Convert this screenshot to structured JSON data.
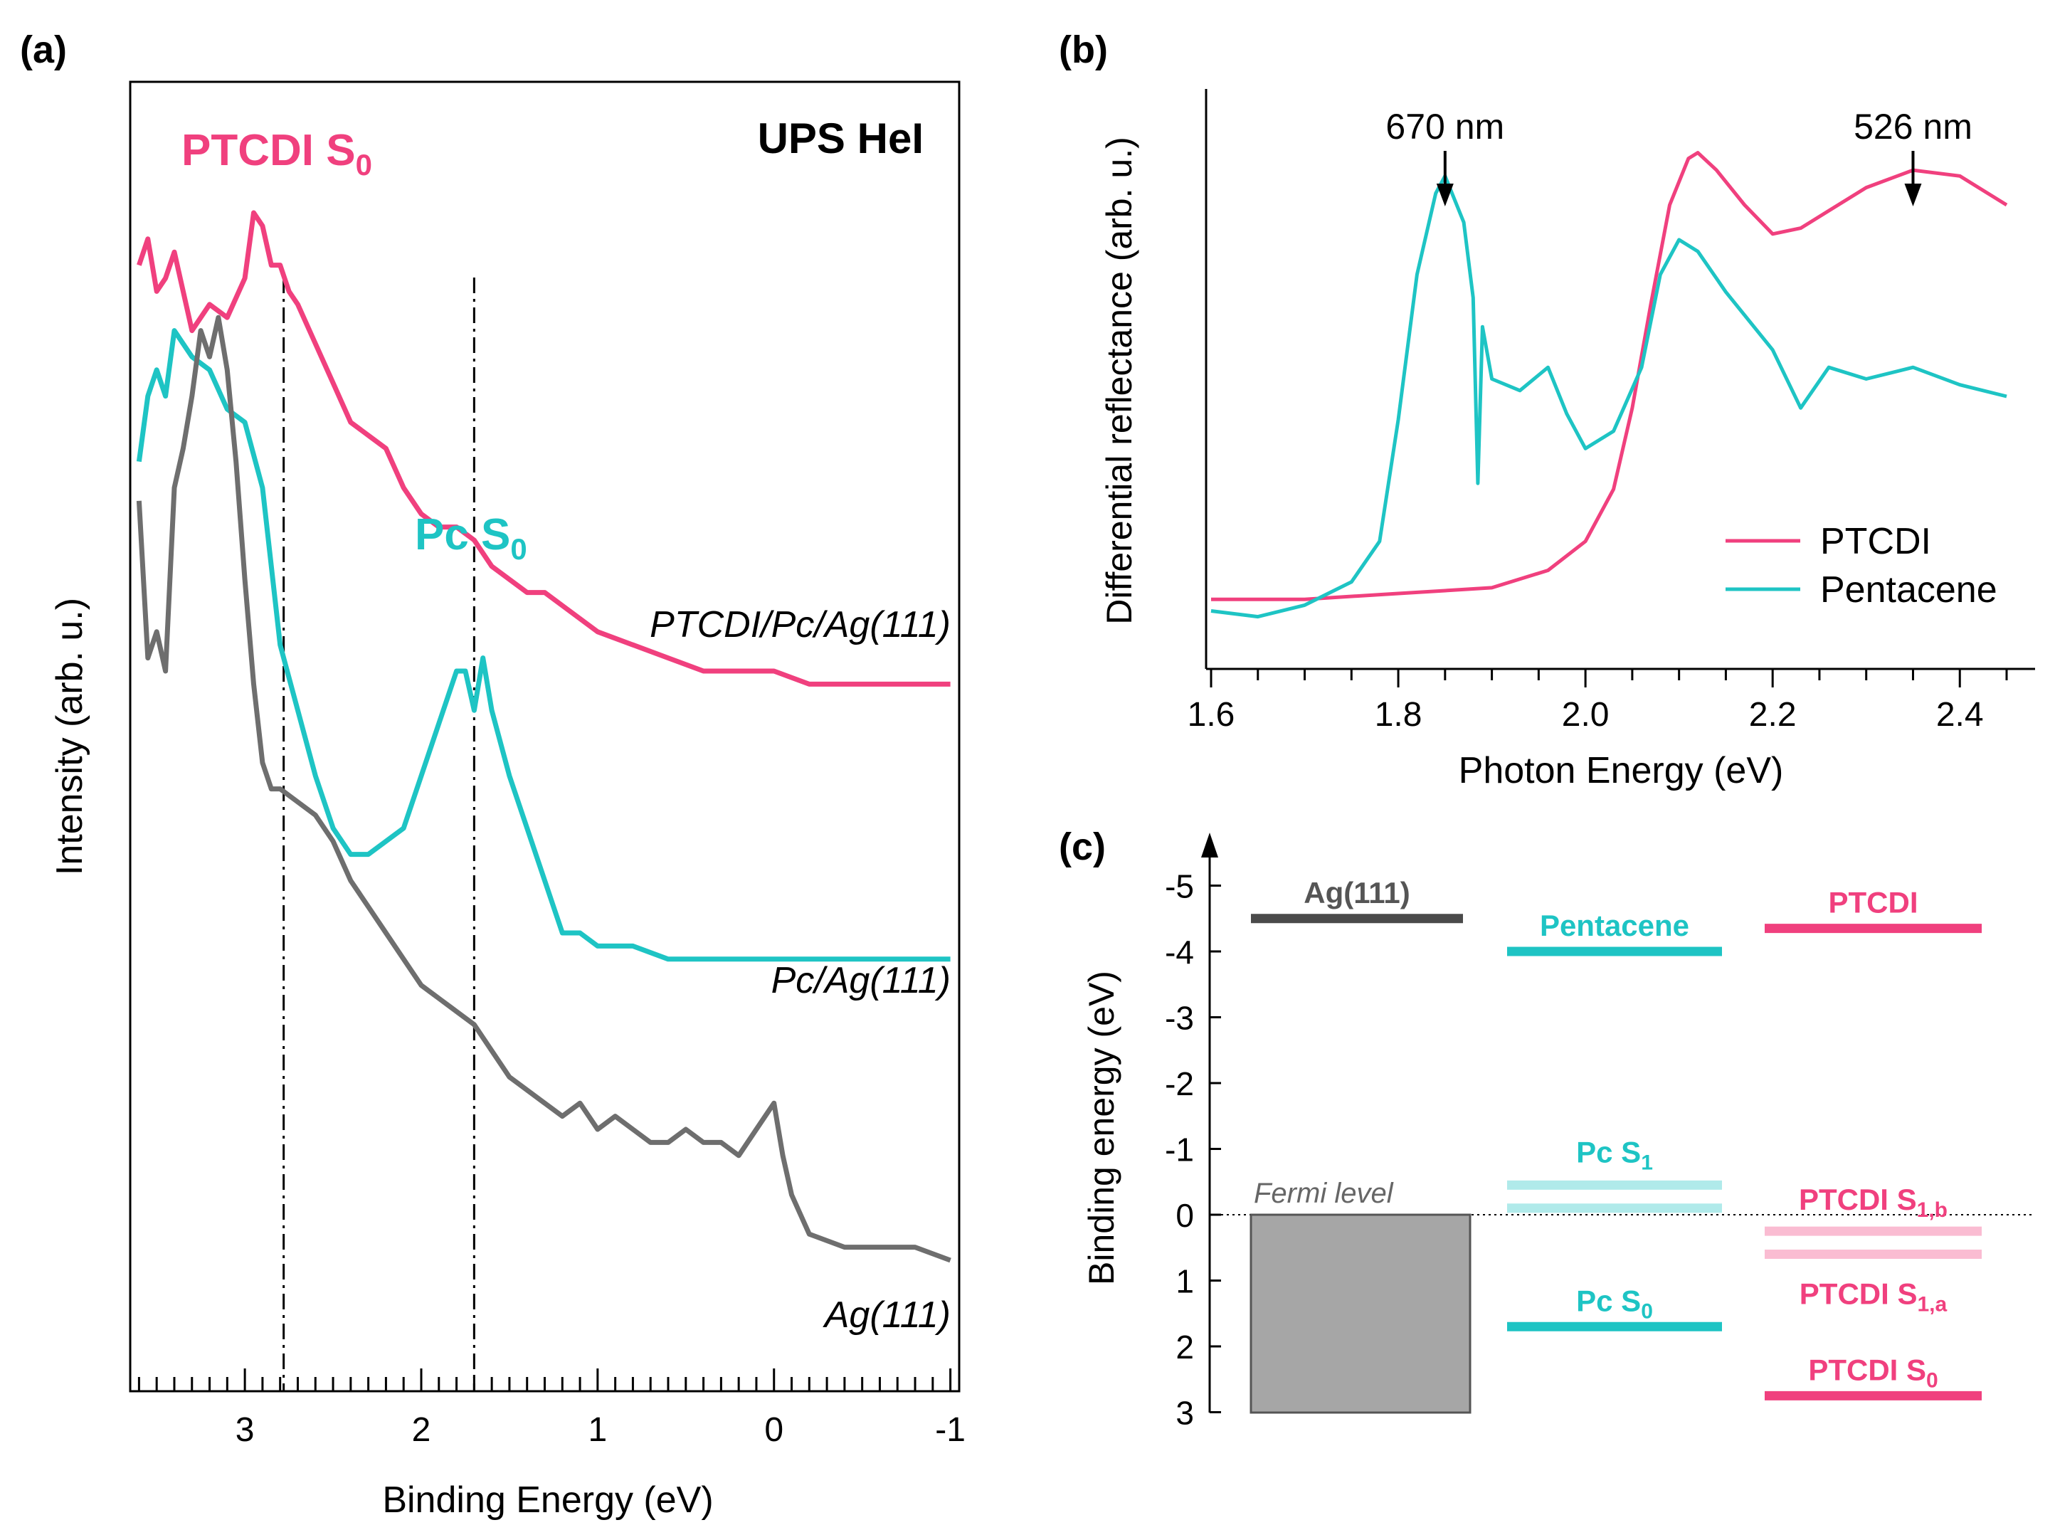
{
  "figure": {
    "colors": {
      "ptcdi": "#f0407e",
      "pentacene": "#1ec4c4",
      "ag": "#6e6e6e",
      "ag_dark": "#4a4a4a",
      "box": "#a6a6a6",
      "black": "#000000"
    }
  },
  "chart_data": [
    {
      "panel": "(a)",
      "type": "line",
      "title": "UPS HeI",
      "xlabel": "Binding Energy (eV)",
      "ylabel": "Intensity (arb. u.)",
      "xlim": [
        3.65,
        -1.05
      ],
      "xticks": [
        3,
        2,
        1,
        0,
        -1
      ],
      "x_inverted": true,
      "annotations": [
        {
          "text": "PTCDI S",
          "sub": "0",
          "color": "ptcdi"
        },
        {
          "text": "Pc S",
          "sub": "0",
          "color": "pentacene"
        }
      ],
      "guides_x": [
        2.78,
        1.7
      ],
      "series": [
        {
          "name": "PTCDI/Pc/Ag(111)",
          "color": "ptcdi",
          "x": [
            3.6,
            3.55,
            3.5,
            3.45,
            3.4,
            3.35,
            3.3,
            3.2,
            3.1,
            3.0,
            2.95,
            2.9,
            2.85,
            2.8,
            2.75,
            2.7,
            2.6,
            2.5,
            2.4,
            2.3,
            2.2,
            2.1,
            2.0,
            1.9,
            1.8,
            1.7,
            1.6,
            1.5,
            1.4,
            1.3,
            1.2,
            1.0,
            0.8,
            0.6,
            0.4,
            0.2,
            0.0,
            -0.2,
            -0.4,
            -0.6,
            -0.8,
            -1.0
          ],
          "y": [
            0.86,
            0.88,
            0.84,
            0.85,
            0.87,
            0.84,
            0.81,
            0.83,
            0.82,
            0.85,
            0.9,
            0.89,
            0.86,
            0.86,
            0.84,
            0.83,
            0.8,
            0.77,
            0.74,
            0.73,
            0.72,
            0.69,
            0.67,
            0.66,
            0.66,
            0.65,
            0.63,
            0.62,
            0.61,
            0.61,
            0.6,
            0.58,
            0.57,
            0.56,
            0.55,
            0.55,
            0.55,
            0.54,
            0.54,
            0.54,
            0.54,
            0.54
          ]
        },
        {
          "name": "Pc/Ag(111)",
          "color": "pentacene",
          "x": [
            3.6,
            3.55,
            3.5,
            3.45,
            3.4,
            3.3,
            3.2,
            3.1,
            3.0,
            2.9,
            2.8,
            2.7,
            2.6,
            2.5,
            2.4,
            2.3,
            2.2,
            2.1,
            2.0,
            1.9,
            1.8,
            1.75,
            1.7,
            1.65,
            1.6,
            1.5,
            1.4,
            1.3,
            1.2,
            1.1,
            1.0,
            0.8,
            0.6,
            0.4,
            0.2,
            0.0,
            -0.2,
            -0.4,
            -0.6,
            -0.8,
            -1.0
          ],
          "y": [
            0.71,
            0.76,
            0.78,
            0.76,
            0.81,
            0.79,
            0.78,
            0.75,
            0.74,
            0.69,
            0.57,
            0.52,
            0.47,
            0.43,
            0.41,
            0.41,
            0.42,
            0.43,
            0.47,
            0.51,
            0.55,
            0.55,
            0.52,
            0.56,
            0.52,
            0.47,
            0.43,
            0.39,
            0.35,
            0.35,
            0.34,
            0.34,
            0.33,
            0.33,
            0.33,
            0.33,
            0.33,
            0.33,
            0.33,
            0.33,
            0.33
          ]
        },
        {
          "name": "Ag(111)",
          "color": "ag",
          "x": [
            3.6,
            3.55,
            3.5,
            3.45,
            3.4,
            3.35,
            3.3,
            3.25,
            3.2,
            3.15,
            3.1,
            3.05,
            3.0,
            2.95,
            2.9,
            2.85,
            2.8,
            2.7,
            2.6,
            2.5,
            2.4,
            2.3,
            2.2,
            2.1,
            2.0,
            1.9,
            1.8,
            1.7,
            1.6,
            1.5,
            1.4,
            1.3,
            1.2,
            1.1,
            1.0,
            0.9,
            0.8,
            0.7,
            0.6,
            0.5,
            0.4,
            0.3,
            0.2,
            0.1,
            0.0,
            -0.05,
            -0.1,
            -0.2,
            -0.4,
            -0.6,
            -0.8,
            -1.0
          ],
          "y": [
            0.68,
            0.56,
            0.58,
            0.55,
            0.69,
            0.72,
            0.76,
            0.81,
            0.79,
            0.82,
            0.78,
            0.71,
            0.62,
            0.54,
            0.48,
            0.46,
            0.46,
            0.45,
            0.44,
            0.42,
            0.39,
            0.37,
            0.35,
            0.33,
            0.31,
            0.3,
            0.29,
            0.28,
            0.26,
            0.24,
            0.23,
            0.22,
            0.21,
            0.22,
            0.2,
            0.21,
            0.2,
            0.19,
            0.19,
            0.2,
            0.19,
            0.19,
            0.18,
            0.2,
            0.22,
            0.18,
            0.15,
            0.12,
            0.11,
            0.11,
            0.11,
            0.1
          ]
        }
      ]
    },
    {
      "panel": "(b)",
      "type": "line",
      "xlabel": "Photon Energy (eV)",
      "ylabel": "Differential reflectance (arb. u.)",
      "xlim": [
        1.6,
        2.45
      ],
      "xticks": [
        1.6,
        1.8,
        2.0,
        2.2,
        2.4
      ],
      "annotations": [
        {
          "text": "670 nm",
          "x": 1.85
        },
        {
          "text": "526 nm",
          "x": 2.35
        }
      ],
      "legend": {
        "position": "bottom-right",
        "entries": [
          {
            "label": "PTCDI",
            "color": "ptcdi"
          },
          {
            "label": "Pentacene",
            "color": "pentacene"
          }
        ]
      },
      "series": [
        {
          "name": "PTCDI",
          "color": "ptcdi",
          "x": [
            1.6,
            1.7,
            1.8,
            1.9,
            1.96,
            2.0,
            2.03,
            2.05,
            2.07,
            2.09,
            2.11,
            2.12,
            2.14,
            2.17,
            2.2,
            2.23,
            2.26,
            2.3,
            2.35,
            2.4,
            2.45
          ],
          "y": [
            0.12,
            0.12,
            0.13,
            0.14,
            0.17,
            0.22,
            0.31,
            0.45,
            0.63,
            0.8,
            0.88,
            0.89,
            0.86,
            0.8,
            0.75,
            0.76,
            0.79,
            0.83,
            0.86,
            0.85,
            0.8
          ]
        },
        {
          "name": "Pentacene",
          "color": "pentacene",
          "x": [
            1.6,
            1.65,
            1.7,
            1.75,
            1.78,
            1.8,
            1.82,
            1.84,
            1.85,
            1.87,
            1.88,
            1.885,
            1.89,
            1.9,
            1.93,
            1.96,
            1.98,
            2.0,
            2.03,
            2.06,
            2.08,
            2.1,
            2.12,
            2.15,
            2.2,
            2.23,
            2.26,
            2.3,
            2.35,
            2.4,
            2.45
          ],
          "y": [
            0.1,
            0.09,
            0.11,
            0.15,
            0.22,
            0.43,
            0.68,
            0.82,
            0.85,
            0.77,
            0.64,
            0.32,
            0.59,
            0.5,
            0.48,
            0.52,
            0.44,
            0.38,
            0.41,
            0.52,
            0.68,
            0.74,
            0.72,
            0.65,
            0.55,
            0.45,
            0.52,
            0.5,
            0.52,
            0.49,
            0.47
          ]
        }
      ]
    },
    {
      "panel": "(c)",
      "type": "diagram",
      "ylabel": "Binding energy (eV)",
      "ylim": [
        3,
        -5
      ],
      "yticks": [
        "-5",
        "-4",
        "-3",
        "-2",
        "-1",
        "0",
        "1",
        "2",
        "3"
      ],
      "fermi_label": "Fermi level",
      "levels": [
        {
          "label": "Ag(111)",
          "energy": -4.5,
          "column": 0,
          "color": "ag_dark"
        },
        {
          "label": "Pentacene",
          "energy": -4.0,
          "column": 1,
          "color": "pentacene"
        },
        {
          "label": "PTCDI",
          "energy": -4.35,
          "column": 2,
          "color": "ptcdi"
        },
        {
          "label": "Pc S",
          "sub": "1",
          "energy": -0.45,
          "energy2": -0.1,
          "column": 1,
          "color": "pentacene",
          "pale": true
        },
        {
          "label": "Pc S",
          "sub": "0",
          "energy": 1.7,
          "column": 1,
          "color": "pentacene"
        },
        {
          "label": "PTCDI S",
          "sub": "1,b",
          "energy": 0.25,
          "column": 2,
          "color": "ptcdi",
          "pale": true
        },
        {
          "label": "PTCDI S",
          "sub": "1,a",
          "energy": 0.6,
          "column": 2,
          "color": "ptcdi",
          "pale": true
        },
        {
          "label": "PTCDI S",
          "sub": "0",
          "energy": 2.75,
          "column": 2,
          "color": "ptcdi"
        }
      ]
    }
  ]
}
